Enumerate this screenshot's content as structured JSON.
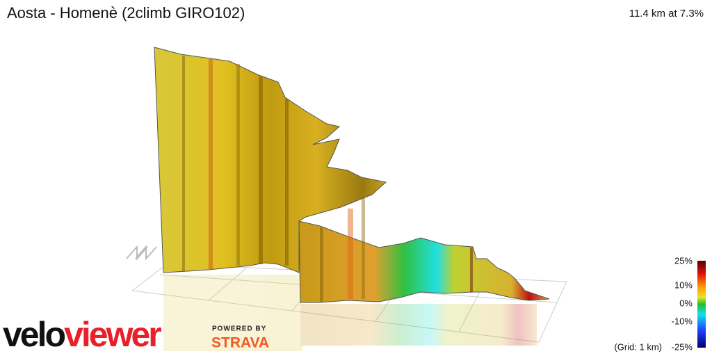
{
  "header": {
    "title": "Aosta - Homenè (2climb GIRO102)",
    "summary": "11.4 km at 7.3%"
  },
  "legend": {
    "ticks": [
      "25%",
      "10%",
      "0%",
      "-10%",
      "-25%"
    ],
    "grid_note": "(Grid: 1 km)"
  },
  "branding": {
    "logo_left": "velo",
    "logo_right": "viewer",
    "powered_by": "POWERED BY",
    "partner": "STRAVA"
  }
}
